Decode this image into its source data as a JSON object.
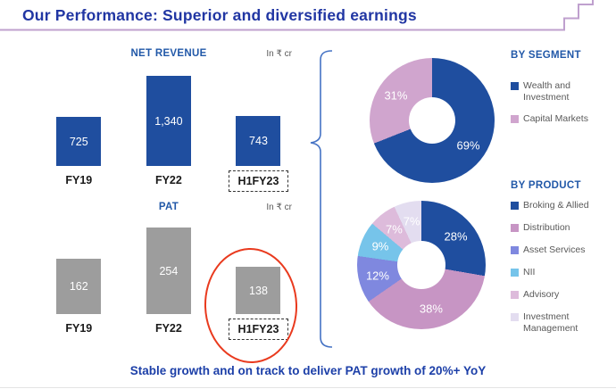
{
  "slide": {
    "title": "Our Performance: Superior and diversified earnings",
    "footer_note": "Stable growth and on track to deliver PAT growth of 20%+ YoY"
  },
  "colors": {
    "title_blue": "#2136A3",
    "chart_title_blue": "#2158A8",
    "bar_blue": "#1F4E9F",
    "bar_gray": "#9D9D9D",
    "accent_purple": "#BFA0CE",
    "highlight_red": "#E93A1E",
    "brace_blue": "#4472C4",
    "legend_text_gray": "#595959"
  },
  "chart_data": [
    {
      "id": "net_revenue",
      "type": "bar",
      "title": "NET REVENUE",
      "unit": "In ₹ cr",
      "categories": [
        "FY19",
        "FY22",
        "H1FY23"
      ],
      "values": [
        725,
        1340,
        743
      ],
      "value_labels": [
        "725",
        "1,340",
        "743"
      ],
      "highlighted_category": "H1FY23",
      "bar_color": "#1F4E9F",
      "ylim": [
        0,
        1340
      ]
    },
    {
      "id": "pat",
      "type": "bar",
      "title": "PAT",
      "unit": "In ₹ cr",
      "categories": [
        "FY19",
        "FY22",
        "H1FY23"
      ],
      "values": [
        162,
        254,
        138
      ],
      "value_labels": [
        "162",
        "254",
        "138"
      ],
      "highlighted_category": "H1FY23",
      "circled_category": "H1FY23",
      "bar_color": "#9D9D9D",
      "ylim": [
        0,
        254
      ]
    },
    {
      "id": "by_segment",
      "type": "pie",
      "donut": true,
      "title": "BY SEGMENT",
      "legend_position": "right",
      "slices": [
        {
          "label": "Wealth and Investment",
          "value": 69,
          "pct_label": "69%",
          "color": "#1F4E9F"
        },
        {
          "label": "Capital Markets",
          "value": 31,
          "pct_label": "31%",
          "color": "#D0A5CE"
        }
      ]
    },
    {
      "id": "by_product",
      "type": "pie",
      "donut": true,
      "title": "BY PRODUCT",
      "legend_position": "right",
      "slices": [
        {
          "label": "Broking & Allied",
          "value": 28,
          "pct_label": "28%",
          "color": "#1F4E9F"
        },
        {
          "label": "Distribution",
          "value": 38,
          "pct_label": "38%",
          "color": "#C795C4"
        },
        {
          "label": "Asset Services",
          "value": 12,
          "pct_label": "12%",
          "color": "#7F88DF"
        },
        {
          "label": "NII",
          "value": 9,
          "pct_label": "9%",
          "color": "#76C4EA"
        },
        {
          "label": "Advisory",
          "value": 7,
          "pct_label": "7%",
          "color": "#DDBBDB"
        },
        {
          "label": "Investment Management",
          "value": 7,
          "pct_label": "7%",
          "color": "#E3DDF0"
        }
      ]
    }
  ]
}
